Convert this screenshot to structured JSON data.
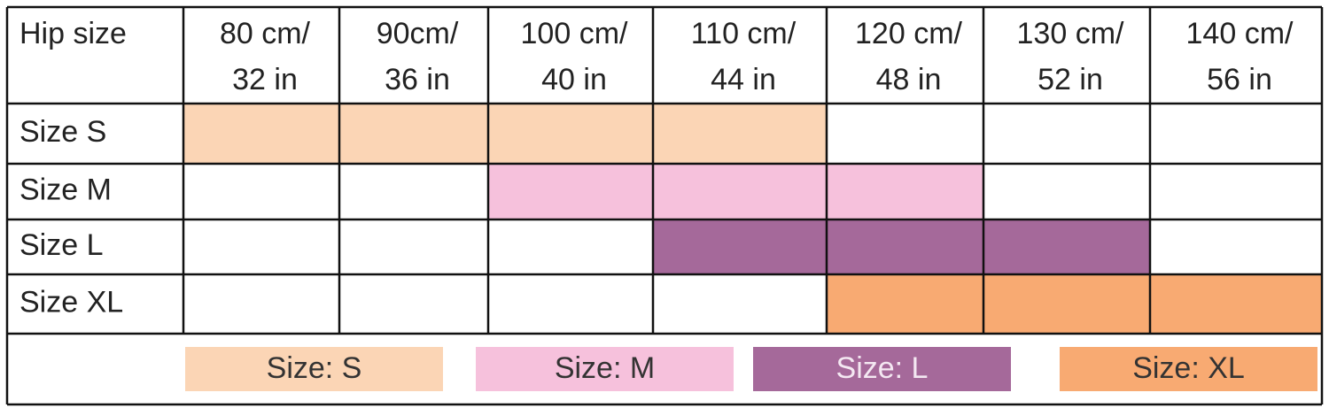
{
  "table": {
    "header": {
      "label": "Hip size",
      "columns": [
        [
          "80 cm/",
          "32 in"
        ],
        [
          "90cm/",
          "36 in"
        ],
        [
          "100 cm/",
          "40 in"
        ],
        [
          "110 cm/",
          "44 in"
        ],
        [
          "120 cm/",
          "48 in"
        ],
        [
          "130 cm/",
          "52 in"
        ],
        [
          "140 cm/",
          "56 in"
        ]
      ]
    },
    "rows": [
      {
        "label": "Size S",
        "color": "#fbd5b5",
        "filled": [
          true,
          true,
          true,
          true,
          false,
          false,
          false
        ]
      },
      {
        "label": "Size M",
        "color": "#f6c1dc",
        "filled": [
          false,
          false,
          true,
          true,
          true,
          false,
          false
        ]
      },
      {
        "label": "Size L",
        "color": "#a5699a",
        "filled": [
          false,
          false,
          false,
          true,
          true,
          true,
          false
        ]
      },
      {
        "label": "Size XL",
        "color": "#f8aa72",
        "filled": [
          false,
          false,
          false,
          false,
          true,
          true,
          true
        ]
      }
    ],
    "legend": [
      {
        "label": "Size: S",
        "color": "#fbd5b5",
        "text_color": "#333333"
      },
      {
        "label": "Size: M",
        "color": "#f6c1dc",
        "text_color": "#333333"
      },
      {
        "label": "Size: L",
        "color": "#a5699a",
        "text_color": "#f4e8f2"
      },
      {
        "label": "Size: XL",
        "color": "#f8aa72",
        "text_color": "#333333"
      }
    ]
  }
}
